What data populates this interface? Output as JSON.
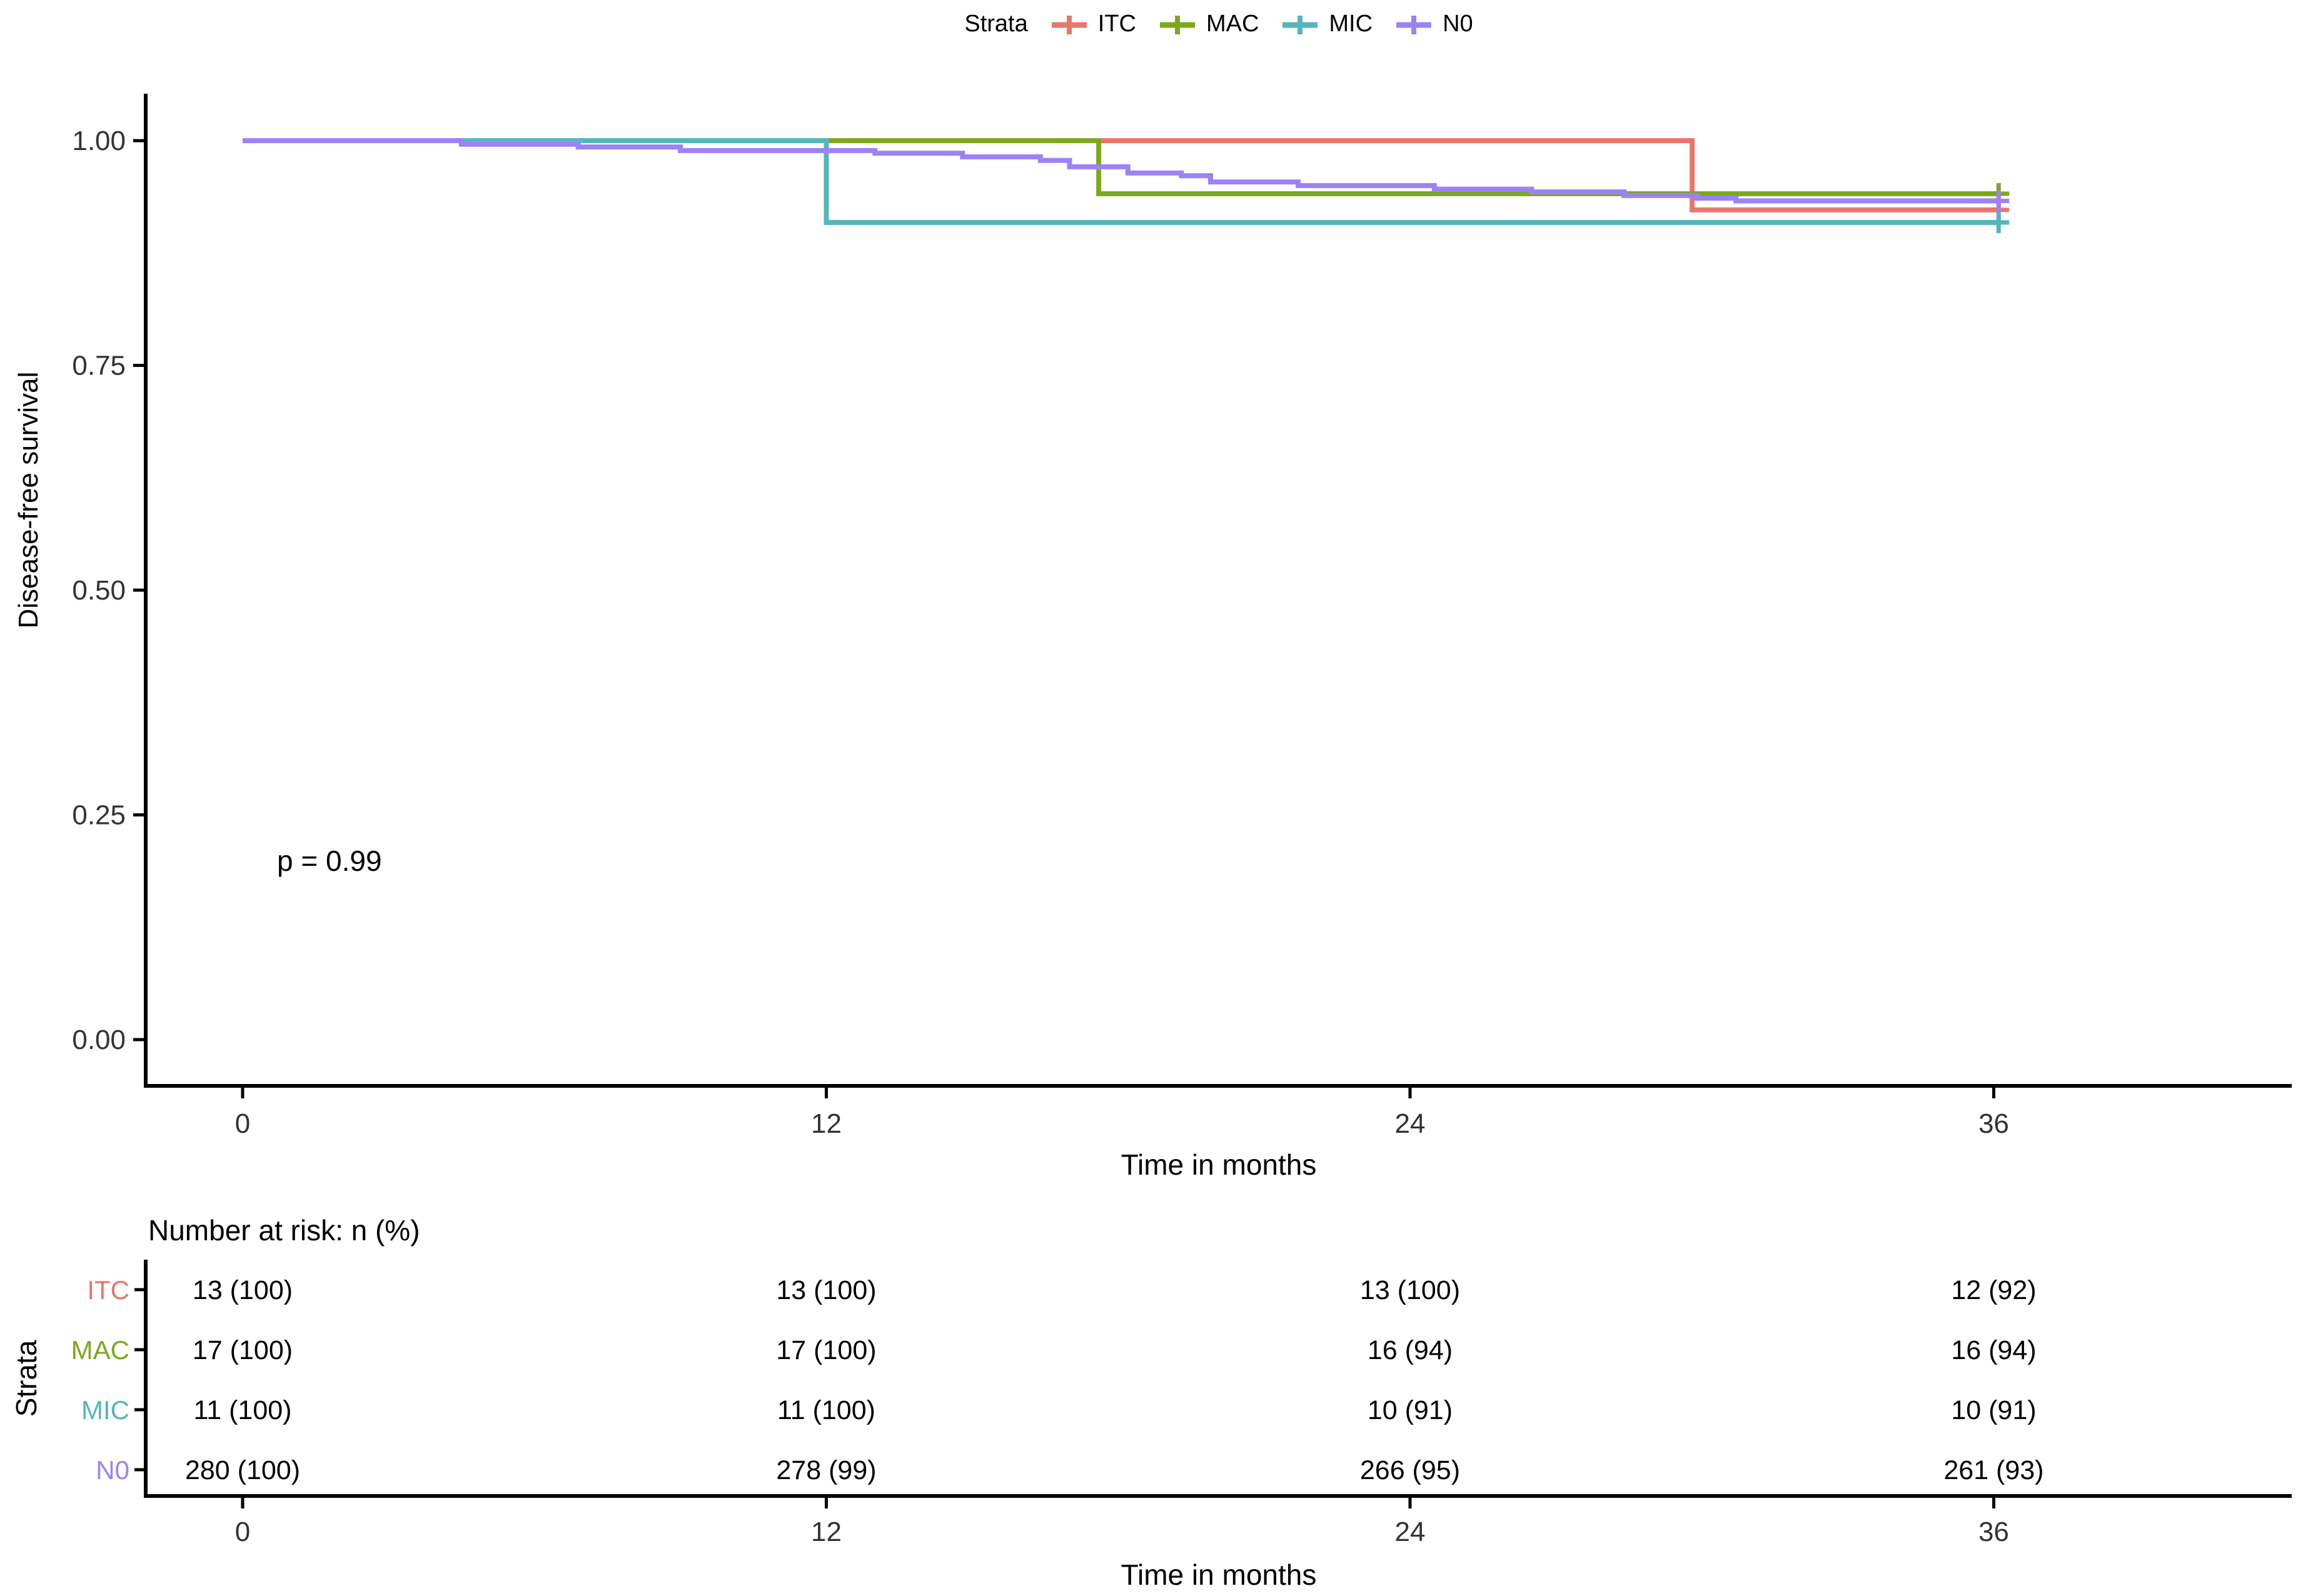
{
  "chart_data": {
    "type": "km_step",
    "title": "",
    "xlabel": "Time in months",
    "ylabel": "Disease-free survival",
    "legend_title": "Strata",
    "legend_position": "top",
    "p_value": "p = 0.99",
    "x_ticks": [
      0,
      12,
      24,
      36
    ],
    "y_ticks": [
      0,
      0.25,
      0.5,
      0.75,
      1
    ],
    "y_tick_labels": [
      "0.00",
      "0.25",
      "0.50",
      "0.75",
      "1.00"
    ],
    "xlim": [
      0,
      42
    ],
    "ylim": [
      0,
      1
    ],
    "grid": "off",
    "censor_end_time": 36.1,
    "series": [
      {
        "name": "ITC",
        "color": "#E8766D",
        "steps": [
          [
            0,
            1.0
          ],
          [
            29.8,
            0.923
          ],
          [
            36.1,
            0.923
          ]
        ]
      },
      {
        "name": "MAC",
        "color": "#7DA81E",
        "steps": [
          [
            0,
            1.0
          ],
          [
            17.6,
            0.941
          ],
          [
            36.1,
            0.941
          ]
        ]
      },
      {
        "name": "MIC",
        "color": "#55B6BB",
        "steps": [
          [
            0,
            1.0
          ],
          [
            12,
            0.909
          ],
          [
            36.1,
            0.909
          ]
        ]
      },
      {
        "name": "N0",
        "color": "#9C82F2",
        "steps": [
          [
            0,
            1.0
          ],
          [
            4.5,
            0.996
          ],
          [
            6.9,
            0.993
          ],
          [
            9.0,
            0.989
          ],
          [
            13.0,
            0.986
          ],
          [
            14.8,
            0.982
          ],
          [
            16.4,
            0.978
          ],
          [
            17.0,
            0.971
          ],
          [
            18.2,
            0.964
          ],
          [
            19.3,
            0.961
          ],
          [
            19.9,
            0.954
          ],
          [
            21.7,
            0.95
          ],
          [
            24.5,
            0.946
          ],
          [
            26.5,
            0.943
          ],
          [
            28.4,
            0.939
          ],
          [
            29.9,
            0.936
          ],
          [
            30.7,
            0.933
          ],
          [
            36.1,
            0.933
          ]
        ]
      }
    ]
  },
  "risk_table": {
    "title": "Number at risk: n (%)",
    "axis_label": "Strata",
    "xlabel": "Time in months",
    "x_ticks": [
      0,
      12,
      24,
      36
    ],
    "rows": [
      {
        "label": "ITC",
        "color": "#E8766D",
        "values": [
          "13 (100)",
          "13 (100)",
          "13 (100)",
          "12 (92)"
        ]
      },
      {
        "label": "MAC",
        "color": "#7DA81E",
        "values": [
          "17 (100)",
          "17 (100)",
          "16 (94)",
          "16 (94)"
        ]
      },
      {
        "label": "MIC",
        "color": "#55B6BB",
        "values": [
          "11 (100)",
          "11 (100)",
          "10 (91)",
          "10 (91)"
        ]
      },
      {
        "label": "N0",
        "color": "#9C82F2",
        "values": [
          "280 (100)",
          "278 (99)",
          "266 (95)",
          "261 (93)"
        ]
      }
    ]
  },
  "colors": {
    "axis_line": "#000000",
    "tick_text": "#333333",
    "value_text": "#000000"
  }
}
